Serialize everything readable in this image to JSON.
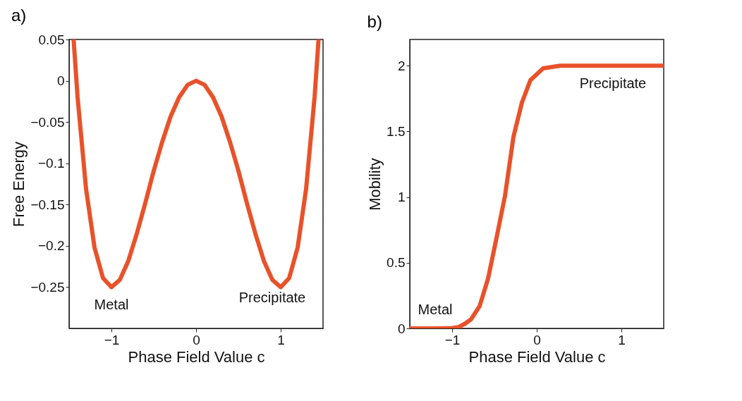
{
  "chart_data": [
    {
      "type": "line",
      "title": "a)",
      "xlabel": "Phase Field Value c",
      "ylabel": "Free Energy",
      "x": [
        -1.447,
        -1.4,
        -1.3,
        -1.2,
        -1.1,
        -1.0,
        -0.9,
        -0.8,
        -0.7,
        -0.6,
        -0.5,
        -0.4,
        -0.3,
        -0.2,
        -0.1,
        0,
        0.1,
        0.2,
        0.3,
        0.4,
        0.5,
        0.6,
        0.7,
        0.8,
        0.9,
        1.0,
        1.1,
        1.2,
        1.3,
        1.4,
        1.447
      ],
      "series": [
        {
          "color": "#e8522a",
          "values": [
            0.05,
            -0.02,
            -0.131,
            -0.202,
            -0.239,
            -0.25,
            -0.241,
            -0.218,
            -0.185,
            -0.148,
            -0.109,
            -0.074,
            -0.043,
            -0.02,
            -0.005,
            0,
            -0.005,
            -0.02,
            -0.043,
            -0.074,
            -0.109,
            -0.148,
            -0.185,
            -0.218,
            -0.241,
            -0.25,
            -0.239,
            -0.202,
            -0.131,
            -0.02,
            0.05
          ]
        }
      ],
      "xlim": [
        -1.5,
        1.5
      ],
      "xticks": [
        -1,
        0,
        1
      ],
      "ylim": [
        -0.3,
        0.05
      ],
      "yticks": [
        -0.25,
        -0.2,
        -0.15,
        -0.1,
        -0.05,
        0,
        0.05
      ],
      "annotations": [
        {
          "text": "Metal",
          "x": -1.0,
          "y": -0.25
        },
        {
          "text": "Precipitate",
          "x": 0.9,
          "y": -0.241
        }
      ],
      "grid": false,
      "line_style": "solid",
      "marker": "none"
    },
    {
      "type": "line",
      "title": "b)",
      "xlabel": "Phase Field Value c",
      "ylabel": "Mobility",
      "x": [
        -1.5,
        -1.2,
        -1.0,
        -0.925,
        -0.85,
        -0.775,
        -0.675,
        -0.575,
        -0.475,
        -0.375,
        -0.275,
        -0.175,
        -0.075,
        0.075,
        0.275,
        0.6,
        0.9,
        1.5
      ],
      "series": [
        {
          "color": "#e8522a",
          "values": [
            0,
            0,
            0.003,
            0.01,
            0.035,
            0.07,
            0.17,
            0.38,
            0.69,
            1.01,
            1.46,
            1.72,
            1.89,
            1.98,
            2.0,
            2.0,
            2.0,
            2.0
          ]
        }
      ],
      "xlim": [
        -1.5,
        1.5
      ],
      "xticks": [
        -1,
        0,
        1
      ],
      "ylim": [
        0,
        2.2
      ],
      "yticks": [
        0,
        0.5,
        1,
        1.5,
        2
      ],
      "annotations": [
        {
          "text": "Metal",
          "x": -1.2,
          "y": 0
        },
        {
          "text": "Precipitate",
          "x": 0.9,
          "y": 2.0
        }
      ],
      "grid": false,
      "line_style": "solid",
      "marker": "none"
    }
  ]
}
